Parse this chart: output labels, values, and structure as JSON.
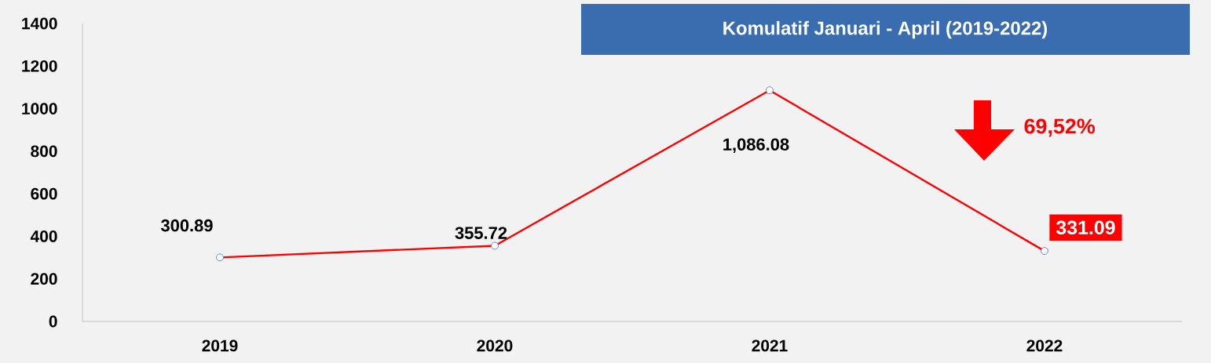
{
  "chart_data": {
    "type": "line",
    "title": "Komulatif Januari - April (2019-2022)",
    "categories": [
      "2019",
      "2020",
      "2021",
      "2022"
    ],
    "series": [
      {
        "color": "#ff0000",
        "values": [
          300.89,
          355.72,
          1086.08,
          331.09
        ],
        "value_labels": [
          "300.89",
          "355.72",
          "1,086.08",
          "331.09"
        ]
      }
    ],
    "ylim": [
      0,
      1400
    ],
    "yticks": [
      0,
      200,
      400,
      600,
      800,
      1000,
      1200,
      1400
    ],
    "marker": "circle",
    "line_style": "solid",
    "grid": false,
    "annotations": [
      "69,52%"
    ]
  }
}
